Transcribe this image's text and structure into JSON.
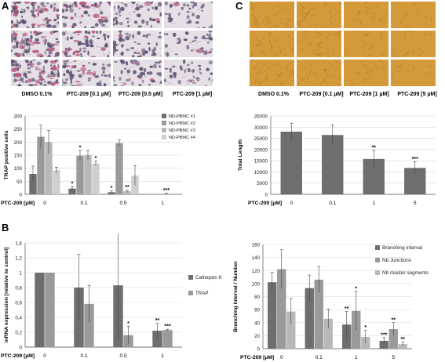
{
  "panels": {
    "A": {
      "letter": "A",
      "image_captions": [
        "DMSO 0.1%",
        "PTC-209 [0.1 µM]",
        "PTC-209 [0.5 µM]",
        "PTC-209 [1 µM]"
      ]
    },
    "B": {
      "letter": "B"
    },
    "C": {
      "letter": "C",
      "image_captions": [
        "DMSO 0.1%",
        "PTC-209 [0.1 µM]",
        "PTC-209 [1 µM]",
        "PTC-209 [5 µM]"
      ]
    }
  },
  "colors": {
    "dark_gray": "#6e6e6e",
    "mid_gray": "#9a9a9a",
    "light_gray": "#b8b8b8",
    "lighter_gray": "#cfcfcf",
    "histology_bg": "#e6e0e6",
    "tube_bg": "#d49a3a"
  },
  "chart_data": [
    {
      "id": "A-chart",
      "type": "bar",
      "ylabel": "TRAP positive cells",
      "xlabel": "PTC-209 [µM]",
      "categories": [
        "0",
        "0.1",
        "0.5",
        "1"
      ],
      "ylim": [
        0,
        300
      ],
      "yticks": [
        "0",
        "50",
        "100",
        "150",
        "200",
        "250",
        "300"
      ],
      "series": [
        {
          "name": "ND-PBMC #1",
          "values": [
            78,
            22,
            8,
            0
          ],
          "errors": [
            30,
            8,
            5,
            0
          ]
        },
        {
          "name": "ND-PBMC #2",
          "values": [
            220,
            148,
            196,
            0
          ],
          "errors": [
            45,
            20,
            12,
            0
          ]
        },
        {
          "name": "ND-PBMC #3",
          "values": [
            200,
            150,
            12,
            3
          ],
          "errors": [
            45,
            18,
            5,
            2
          ]
        },
        {
          "name": "ND-PBMC #4",
          "values": [
            92,
            118,
            72,
            0
          ],
          "errors": [
            12,
            10,
            38,
            0
          ]
        }
      ],
      "annotations": [
        {
          "category": "0.1",
          "series": 0,
          "text": "*"
        },
        {
          "category": "0.1",
          "series": 1,
          "text": "*"
        },
        {
          "category": "0.1",
          "series": 3,
          "text": "*"
        },
        {
          "category": "0.5",
          "series": 0,
          "text": "*"
        },
        {
          "category": "0.5",
          "series": 2,
          "text": "**"
        },
        {
          "category": "1",
          "series": 2,
          "text": "***"
        }
      ],
      "legend": "right",
      "grid": true
    },
    {
      "id": "B-chart",
      "type": "bar",
      "ylabel": "mRNA expression [relative to control]",
      "xlabel": "PTC-209 [µM]",
      "categories": [
        "0",
        "0.1",
        "0.5",
        "1"
      ],
      "ylim": [
        0,
        1.4
      ],
      "yticks": [
        "0",
        "0,2",
        "0,4",
        "0,6",
        "0,8",
        "1",
        "1,2",
        "1,4"
      ],
      "series": [
        {
          "name": "Cathepsin K",
          "values": [
            1.0,
            0.8,
            0.83,
            0.22
          ],
          "errors": [
            0.0,
            0.45,
            0.72,
            0.1
          ]
        },
        {
          "name": "TRAP",
          "values": [
            1.0,
            0.58,
            0.16,
            0.23
          ],
          "errors": [
            0.0,
            0.25,
            0.12,
            0.01
          ]
        }
      ],
      "annotations": [
        {
          "category": "0.5",
          "series": 1,
          "text": "*"
        },
        {
          "category": "1",
          "series": 0,
          "text": "**"
        },
        {
          "category": "1",
          "series": 1,
          "text": "***"
        }
      ],
      "legend": "right",
      "grid": true
    },
    {
      "id": "C-chart1",
      "type": "bar",
      "ylabel": "Total Length",
      "xlabel": "PTC-209 [µM]",
      "categories": [
        "0",
        "0.1",
        "1",
        "5"
      ],
      "ylim": [
        0,
        35000
      ],
      "yticks": [
        "0",
        "5000",
        "10000",
        "15000",
        "20000",
        "25000",
        "30000",
        "35000"
      ],
      "series": [
        {
          "values": [
            28000,
            26500,
            15800,
            11800
          ],
          "errors": [
            3800,
            4500,
            3800,
            2800
          ]
        }
      ],
      "annotations": [
        {
          "category": "1",
          "series": 0,
          "text": "**"
        },
        {
          "category": "5",
          "series": 0,
          "text": "***"
        }
      ],
      "grid": true
    },
    {
      "id": "C-chart2",
      "type": "bar",
      "ylabel": "Branching interval / Number",
      "xlabel": "PTC-209 [µM]",
      "categories": [
        "0",
        "0.1",
        "1",
        "5"
      ],
      "ylim": [
        0,
        160
      ],
      "yticks": [
        "0",
        "20",
        "40",
        "60",
        "80",
        "100",
        "120",
        "140",
        "160"
      ],
      "series": [
        {
          "name": "Branching interval",
          "values": [
            102,
            93,
            37,
            12
          ],
          "errors": [
            15,
            20,
            20,
            5
          ]
        },
        {
          "name": "Nb Junctions",
          "values": [
            122,
            106,
            58,
            30
          ],
          "errors": [
            30,
            20,
            30,
            10
          ]
        },
        {
          "name": "Nb master segments",
          "values": [
            57,
            46,
            18,
            7
          ],
          "errors": [
            20,
            15,
            10,
            3
          ]
        }
      ],
      "annotations": [
        {
          "category": "1",
          "series": 0,
          "text": "**"
        },
        {
          "category": "1",
          "series": 1,
          "text": "*"
        },
        {
          "category": "1",
          "series": 2,
          "text": "*"
        },
        {
          "category": "5",
          "series": 0,
          "text": "***"
        },
        {
          "category": "5",
          "series": 1,
          "text": "**"
        },
        {
          "category": "5",
          "series": 2,
          "text": "**"
        }
      ],
      "legend": "right",
      "grid": true
    }
  ]
}
